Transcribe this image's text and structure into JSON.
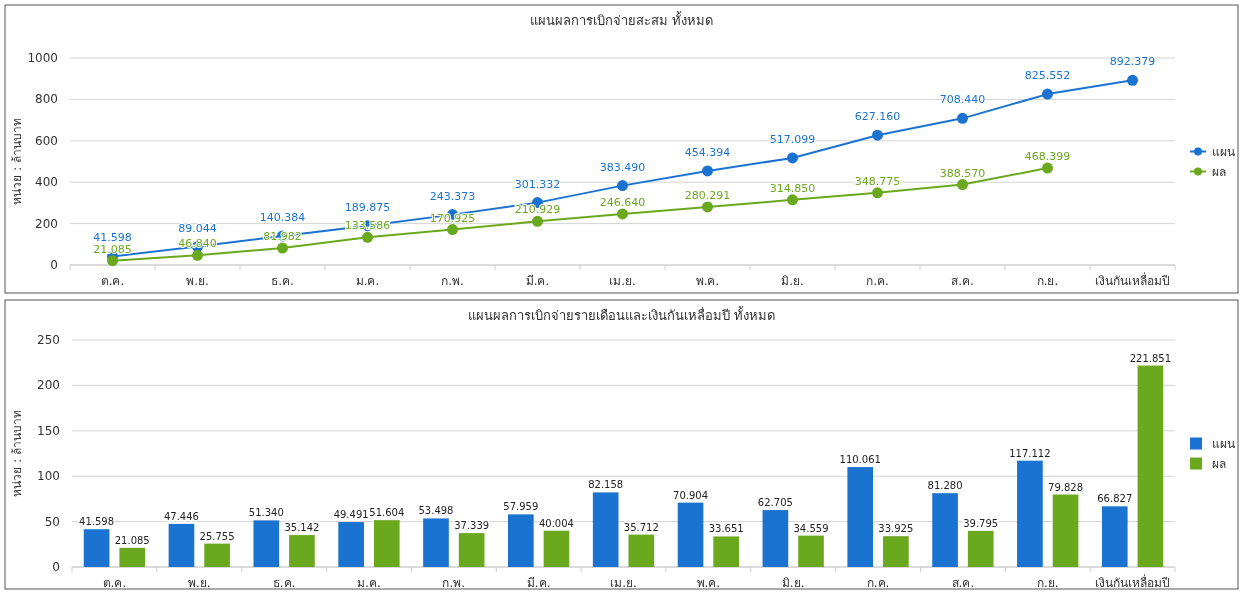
{
  "chart_data": [
    {
      "type": "line",
      "title": "แผนผลการเบิกจ่ายสะสม ทั้งหมด",
      "ylabel": "หน่วย : ล้านบาท",
      "categories": [
        "ต.ค.",
        "พ.ย.",
        "ธ.ค.",
        "ม.ค.",
        "ก.พ.",
        "มี.ค.",
        "เม.ย.",
        "พ.ค.",
        "มิ.ย.",
        "ก.ค.",
        "ส.ค.",
        "ก.ย.",
        "เงินกันเหลื่อมปี"
      ],
      "series": [
        {
          "name": "แผน",
          "color": "#1a73d0",
          "values": [
            41.598,
            89.044,
            140.384,
            189.875,
            243.373,
            301.332,
            383.49,
            454.394,
            517.099,
            627.16,
            708.44,
            825.552,
            892.379
          ],
          "value_labels": [
            "41.598",
            "89.044",
            "140.384",
            "189.875",
            "243.373",
            "301.332",
            "383.490",
            "454.394",
            "517.099",
            "627.160",
            "708.440",
            "825.552",
            "892.379"
          ]
        },
        {
          "name": "ผล",
          "color": "#6aa81e",
          "values": [
            21.085,
            46.84,
            81.982,
            133.586,
            170.925,
            210.929,
            246.64,
            280.291,
            314.85,
            348.775,
            388.57,
            468.399,
            null
          ],
          "value_labels": [
            "21.085",
            "46.840",
            "81.982",
            "133.586",
            "170.925",
            "210.929",
            "246.640",
            "280.291",
            "314.850",
            "348.775",
            "388.570",
            "468.399",
            null
          ]
        }
      ],
      "ylim": [
        0,
        1000
      ],
      "yticks": [
        0,
        200,
        400,
        600,
        800,
        1000
      ],
      "grid": "y",
      "legend": "right",
      "marker": "circle"
    },
    {
      "type": "bar",
      "title": "แผนผลการเบิกจ่ายรายเดือนและเงินกันเหลื่อมปี ทั้งหมด",
      "ylabel": "หน่วย : ล้านบาท",
      "categories": [
        "ต.ค.",
        "พ.ย.",
        "ธ.ค.",
        "ม.ค.",
        "ก.พ.",
        "มี.ค.",
        "เม.ย.",
        "พ.ค.",
        "มิ.ย.",
        "ก.ค.",
        "ส.ค.",
        "ก.ย.",
        "เงินกันเหลื่อมปี"
      ],
      "series": [
        {
          "name": "แผน",
          "color": "#1a73d0",
          "values": [
            41.598,
            47.446,
            51.34,
            49.491,
            53.498,
            57.959,
            82.158,
            70.904,
            62.705,
            110.061,
            81.28,
            117.112,
            66.827
          ],
          "value_labels": [
            "41.598",
            "47.446",
            "51.340",
            "49.491",
            "53.498",
            "57.959",
            "82.158",
            "70.904",
            "62.705",
            "110.061",
            "81.280",
            "117.112",
            "66.827"
          ]
        },
        {
          "name": "ผล",
          "color": "#6aa81e",
          "values": [
            21.085,
            25.755,
            35.142,
            51.604,
            37.339,
            40.004,
            35.712,
            33.651,
            34.559,
            33.925,
            39.795,
            79.828,
            221.851
          ],
          "value_labels": [
            "21.085",
            "25.755",
            "35.142",
            "51.604",
            "37.339",
            "40.004",
            "35.712",
            "33.651",
            "34.559",
            "33.925",
            "39.795",
            "79.828",
            "221.851"
          ]
        }
      ],
      "ylim": [
        0,
        250
      ],
      "yticks": [
        0,
        50,
        100,
        150,
        200,
        250
      ],
      "grid": "y",
      "legend": "right"
    }
  ]
}
